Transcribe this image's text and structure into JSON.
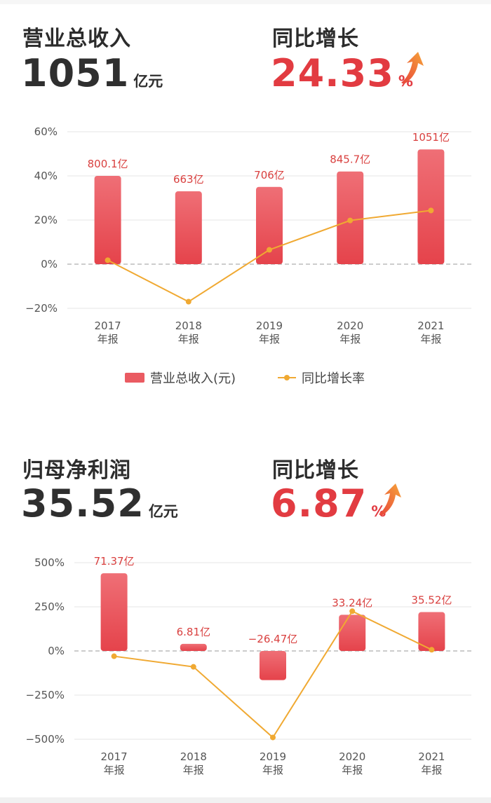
{
  "section1": {
    "metric_label": "营业总收入",
    "metric_value": "1051",
    "metric_unit": "亿元",
    "growth_label": "同比增长",
    "growth_value": "24.33",
    "growth_unit": "%",
    "growth_icon": "up-arrow-icon",
    "legend": {
      "bar": "营业总收入(元)",
      "line": "同比增长率"
    }
  },
  "section2": {
    "metric_label": "归母净利润",
    "metric_value": "35.52",
    "metric_unit": "亿元",
    "growth_label": "同比增长",
    "growth_value": "6.87",
    "growth_unit": "%",
    "growth_icon": "up-arrow-icon"
  },
  "colors": {
    "bar": "#e84c55",
    "line": "#f0a932",
    "accent": "#e23b41"
  },
  "chart_data": [
    {
      "type": "bar",
      "categories": [
        "2017\n年报",
        "2018\n年报",
        "2019\n年报",
        "2020\n年报",
        "2021\n年报"
      ],
      "bar_labels": [
        "800.1亿",
        "663亿",
        "706亿",
        "845.7亿",
        "1051亿"
      ],
      "series": [
        {
          "name": "营业总收入(元)",
          "type": "bar",
          "values": [
            40,
            33,
            35,
            42,
            52
          ]
        },
        {
          "name": "同比增长率",
          "type": "line",
          "values": [
            1.8,
            -17,
            6.5,
            19.8,
            24.33
          ]
        }
      ],
      "yticks": [
        60,
        40,
        20,
        0,
        -20
      ],
      "ytick_labels": [
        "60%",
        "40%",
        "20%",
        "0%",
        "−20%"
      ],
      "ylim": [
        -20,
        60
      ],
      "grid": true,
      "legend": "bottom"
    },
    {
      "type": "bar",
      "categories": [
        "2017\n年报",
        "2018\n年报",
        "2019\n年报",
        "2020\n年报",
        "2021\n年报"
      ],
      "bar_labels": [
        "71.37亿",
        "6.81亿",
        "−26.47亿",
        "33.24亿",
        "35.52亿"
      ],
      "series": [
        {
          "name": "归母净利润",
          "type": "bar",
          "values": [
            440,
            40,
            -165,
            205,
            220
          ]
        },
        {
          "name": "同比增长率",
          "type": "line",
          "values": [
            -30,
            -90,
            -490,
            225,
            6.87
          ]
        }
      ],
      "yticks": [
        500,
        250,
        0,
        -250,
        -500
      ],
      "ytick_labels": [
        "500%",
        "250%",
        "0%",
        "−250%",
        "−500%"
      ],
      "ylim": [
        -500,
        500
      ],
      "grid": true
    }
  ]
}
